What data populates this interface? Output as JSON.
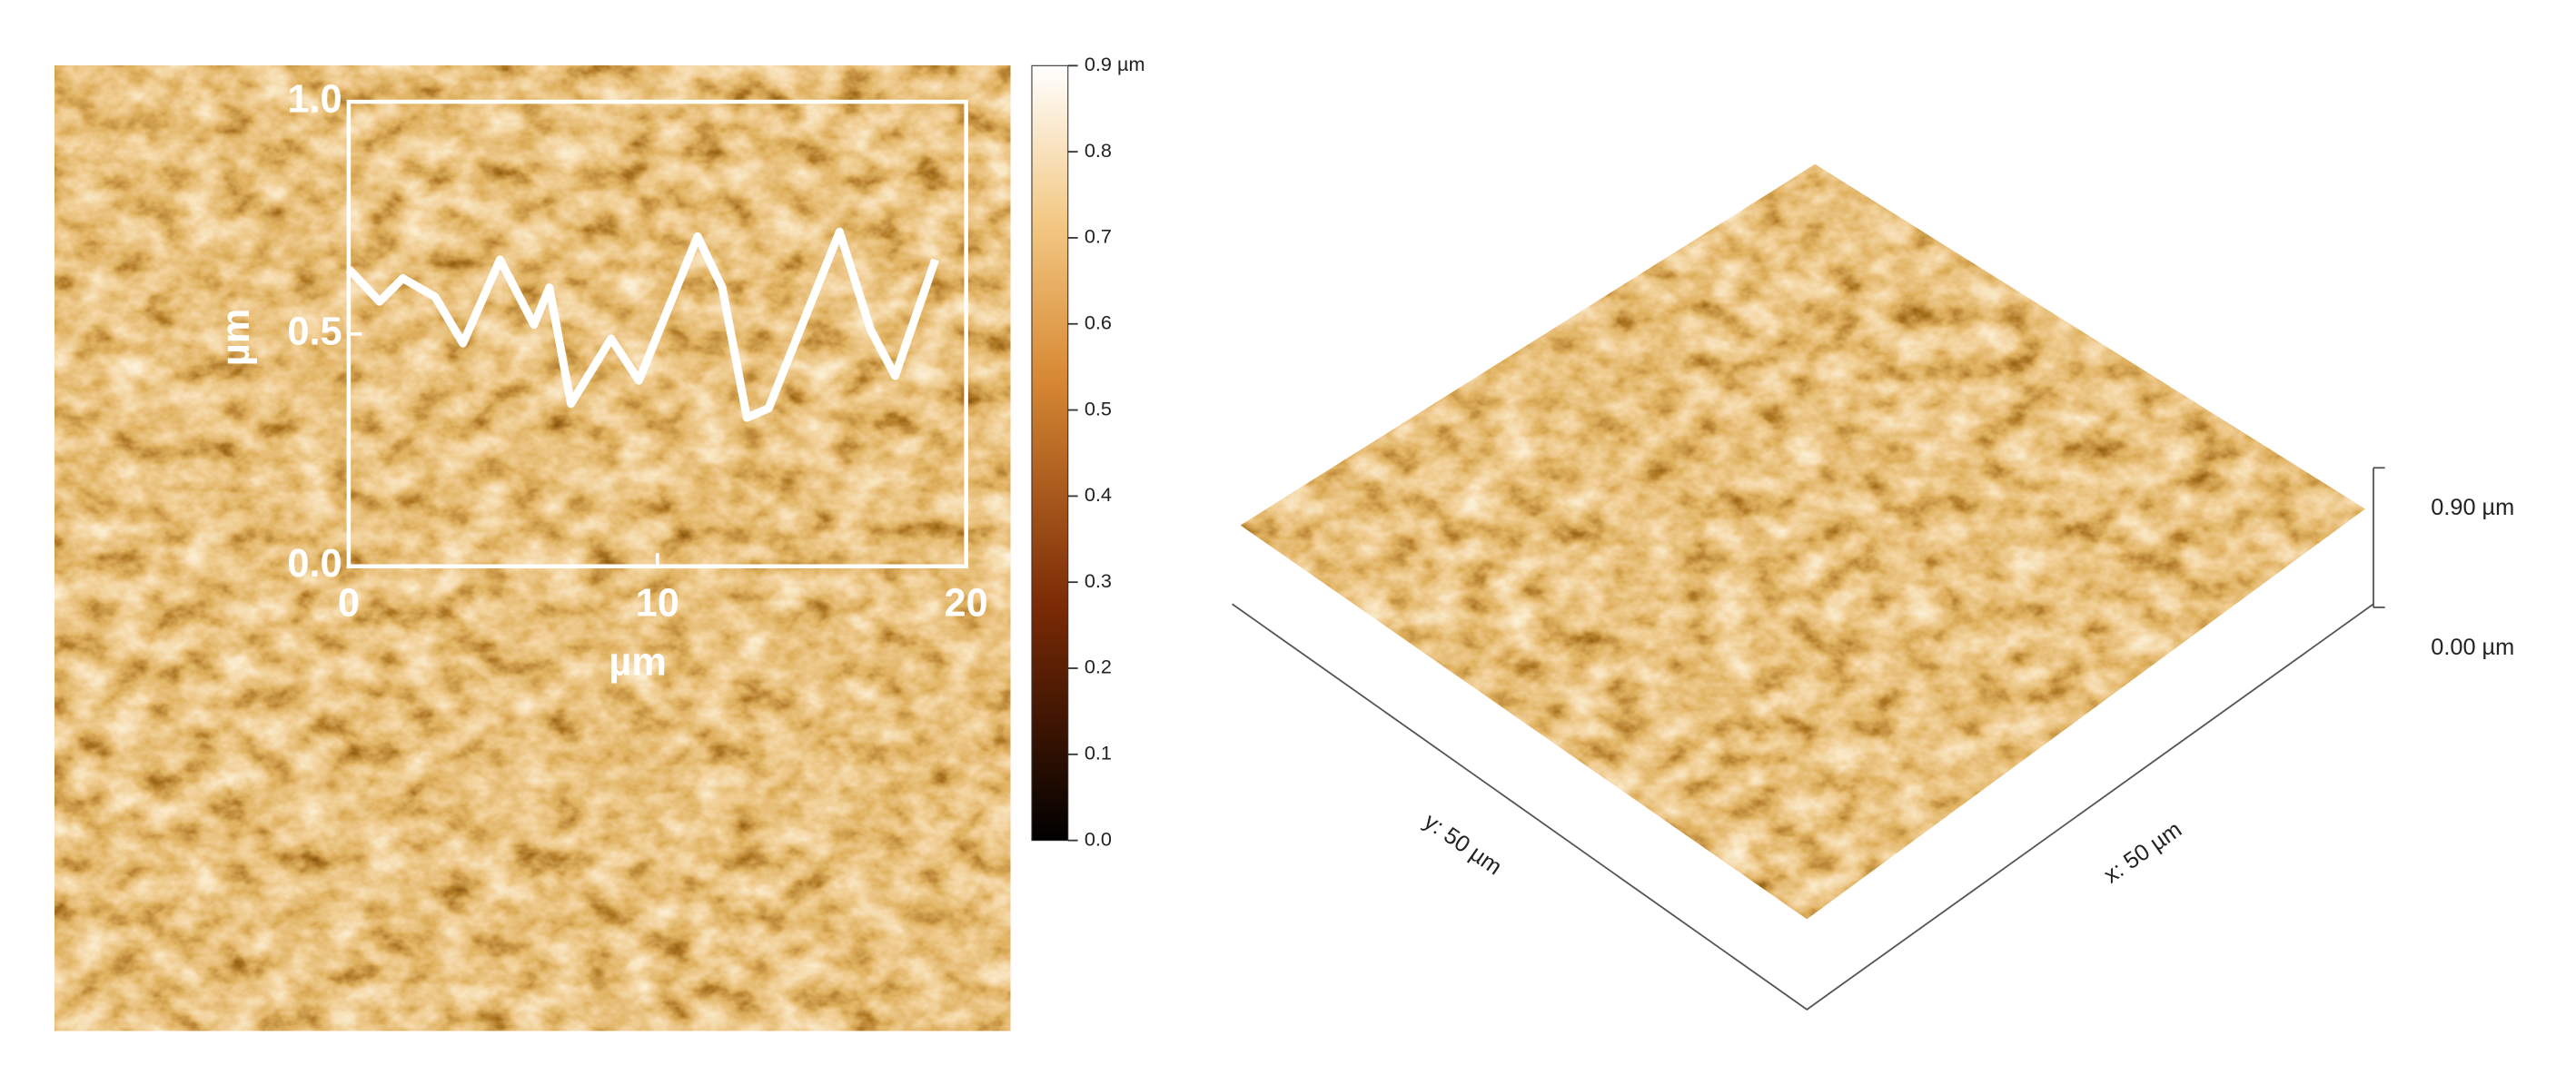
{
  "chart_data": {
    "type": "line",
    "x": [
      0,
      1.0,
      1.75,
      2.8,
      3.7,
      4.9,
      6.0,
      6.5,
      7.2,
      8.5,
      9.4,
      11.3,
      12.1,
      12.9,
      13.6,
      15.9,
      16.9,
      17.7,
      19.0
    ],
    "values": [
      0.64,
      0.57,
      0.62,
      0.58,
      0.48,
      0.66,
      0.52,
      0.6,
      0.35,
      0.49,
      0.4,
      0.71,
      0.6,
      0.32,
      0.34,
      0.72,
      0.51,
      0.41,
      0.66
    ],
    "color": "#ffffff",
    "xlabel": "µm",
    "ylabel": "µm",
    "xlim": [
      0,
      20
    ],
    "xticks": [
      0,
      10,
      20
    ],
    "ylim": [
      0,
      1
    ],
    "yticks": [
      {
        "value": 0,
        "label": "0.0"
      },
      0.5,
      {
        "value": 1,
        "label": "1.0"
      }
    ]
  },
  "colorbar": {
    "lim": [
      0,
      0.9
    ],
    "ticks": [
      {
        "value": 0,
        "label": "0.0"
      },
      0.1,
      0.2,
      0.3,
      0.4,
      0.5,
      0.6,
      0.7,
      0.8,
      {
        "value": 0.9,
        "label": "0.9 µm"
      }
    ]
  },
  "surface_3d": {
    "z_top_label": "0.90 µm",
    "z_bottom_label": "0.00 µm",
    "y_label": "y: 50 µm",
    "x_label": "x: 50 µm"
  }
}
